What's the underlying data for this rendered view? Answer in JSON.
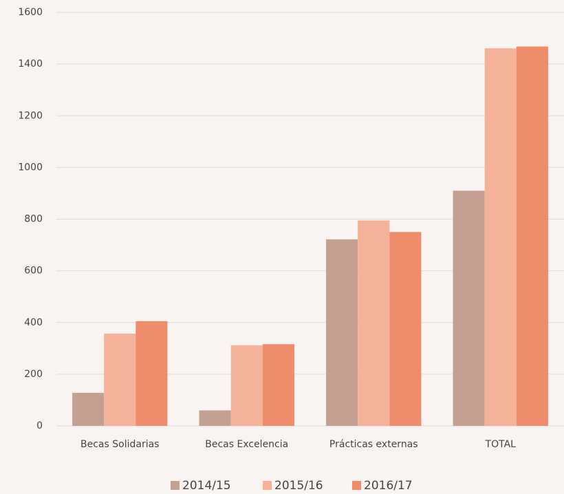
{
  "chart_data": {
    "type": "bar",
    "categories": [
      "Becas Solidarias",
      "Becas Excelencia",
      "Prácticas externas",
      "TOTAL"
    ],
    "series": [
      {
        "name": "2014/15",
        "color": "#c4a092",
        "values": [
          128,
          60,
          722,
          910
        ]
      },
      {
        "name": "2015/16",
        "color": "#f4b399",
        "values": [
          357,
          312,
          795,
          1461
        ]
      },
      {
        "name": "2016/17",
        "color": "#ef8c6a",
        "values": [
          405,
          316,
          750,
          1468
        ]
      }
    ],
    "ylim": [
      0,
      1600
    ],
    "yticks": [
      0,
      200,
      400,
      600,
      800,
      1000,
      1200,
      1400,
      1600
    ],
    "grid": true,
    "legend": "bottom"
  }
}
